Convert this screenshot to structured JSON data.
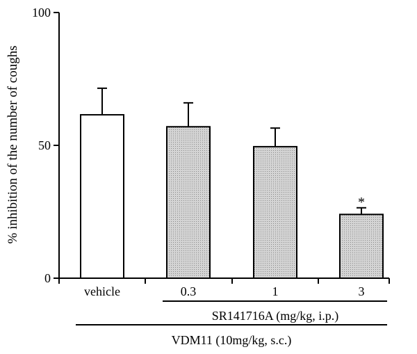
{
  "chart_data": {
    "type": "bar",
    "title": "",
    "xlabel": "",
    "ylabel": "% inhibition of the number of coughs",
    "ylim": [
      0,
      100
    ],
    "yticks": [
      0,
      50,
      100
    ],
    "categories": [
      "vehicle",
      "0.3",
      "1",
      "3"
    ],
    "values": [
      61.5,
      57,
      49.5,
      24
    ],
    "errors": [
      10,
      9,
      7,
      2.5
    ],
    "significance": [
      "",
      "",
      "",
      "*"
    ],
    "bar_colors": [
      "#ffffff",
      "#c8c8c8",
      "#c8c8c8",
      "#c8c8c8"
    ],
    "group_labels": [
      {
        "text": "SR141716A (mg/kg, i.p.)",
        "span": [
          "0.3",
          "3"
        ]
      },
      {
        "text": "VDM11 (10mg/kg, s.c.)",
        "span": [
          "vehicle",
          "3"
        ]
      }
    ],
    "grid": false,
    "legend": "none"
  }
}
